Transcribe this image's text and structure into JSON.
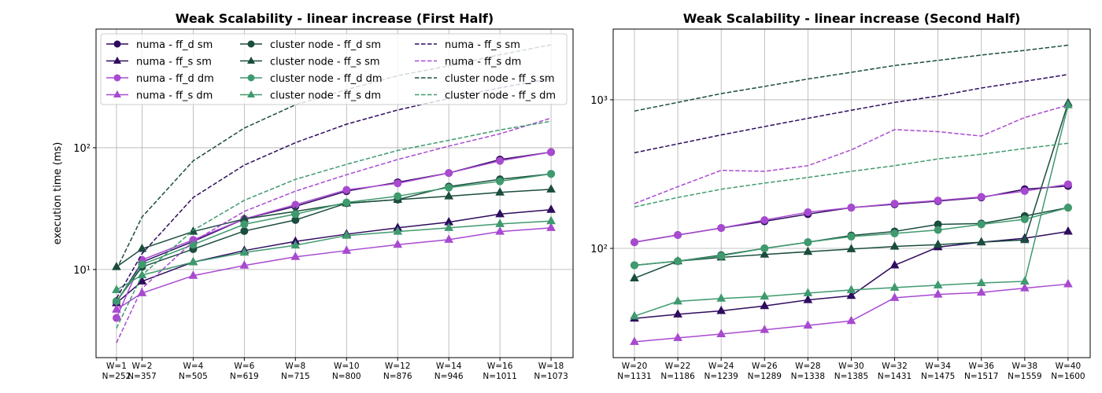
{
  "chart_data": [
    {
      "type": "line",
      "title": "Weak Scalability - linear increase (First Half)",
      "y_label": "execution time (ms)",
      "x": [
        1,
        2,
        4,
        6,
        8,
        10,
        12,
        14,
        16,
        18
      ],
      "xlim": [
        0.2,
        18.86
      ],
      "xticks": [
        {
          "value": 1,
          "label": "W=1\nN=252"
        },
        {
          "value": 2,
          "label": "W=2\nN=357"
        },
        {
          "value": 4,
          "label": "W=4\nN=505"
        },
        {
          "value": 6,
          "label": "W=6\nN=619"
        },
        {
          "value": 8,
          "label": "W=8\nN=715"
        },
        {
          "value": 10,
          "label": "W=10\nN=800"
        },
        {
          "value": 12,
          "label": "W=12\nN=876"
        },
        {
          "value": 14,
          "label": "W=14\nN=946"
        },
        {
          "value": 16,
          "label": "W=16\nN=1011"
        },
        {
          "value": 18,
          "label": "W=18\nN=1073"
        }
      ],
      "ylim": [
        1.89,
        942
      ],
      "log_scale": true,
      "grid": true,
      "yticks": [
        {
          "value": 10,
          "label": "10¹"
        },
        {
          "value": 100,
          "label": "10²"
        }
      ],
      "legend": "upper left",
      "legend_columns": 3,
      "series": [
        {
          "name": "numa - ff_d sm",
          "color": "#2e0c5e",
          "marker": "o",
          "linestyle": "solid",
          "values": [
            5.4,
            11.5,
            17,
            26,
            33,
            44,
            52,
            62,
            80,
            92
          ]
        },
        {
          "name": "numa - ff_s sm",
          "color": "#2e0c5e",
          "marker": "^",
          "linestyle": "solid",
          "values": [
            5.3,
            8,
            11.5,
            14.3,
            17,
            19.5,
            22,
            24.5,
            28.5,
            31
          ]
        },
        {
          "name": "numa - ff_d dm",
          "color": "#a84ad0",
          "marker": "o",
          "linestyle": "solid",
          "values": [
            4.0,
            12,
            17.5,
            26,
            34,
            45,
            51,
            62,
            78,
            92
          ]
        },
        {
          "name": "numa - ff_s dm",
          "color": "#a84ad0",
          "marker": "^",
          "linestyle": "solid",
          "values": [
            4.7,
            6.4,
            8.9,
            10.8,
            12.7,
            14.3,
            16,
            17.6,
            20.5,
            22
          ]
        },
        {
          "name": "cluster node - ff_d sm",
          "color": "#1b4d3e",
          "marker": "o",
          "linestyle": "solid",
          "values": [
            5.5,
            10.5,
            14.7,
            20.7,
            25.5,
            35,
            37.5,
            48,
            55,
            61
          ]
        },
        {
          "name": "cluster node - ff_s sm",
          "color": "#1b4d3e",
          "marker": "^",
          "linestyle": "solid",
          "values": [
            10.5,
            14.8,
            20.5,
            26,
            30,
            35,
            37.5,
            40,
            43,
            45.5
          ]
        },
        {
          "name": "cluster node - ff_d dm",
          "color": "#3f9a6e",
          "marker": "o",
          "linestyle": "solid",
          "values": [
            5.5,
            11,
            16,
            23.5,
            28.5,
            35.5,
            40,
            47,
            53,
            61
          ]
        },
        {
          "name": "cluster node - ff_s dm",
          "color": "#3f9a6e",
          "marker": "^",
          "linestyle": "solid",
          "values": [
            6.8,
            9,
            11.5,
            13.8,
            15.8,
            19,
            20.5,
            22,
            23.7,
            25
          ]
        },
        {
          "name": "numa - ff_s sm",
          "color": "#2e0c5e",
          "marker": null,
          "linestyle": "dashed",
          "values": [
            5.8,
            13.5,
            39,
            72,
            110,
            156,
            204,
            254,
            310,
            370
          ]
        },
        {
          "name": "numa - ff_s dm",
          "color": "#a84ad0",
          "marker": null,
          "linestyle": "dashed",
          "values": [
            2.5,
            7,
            17,
            30,
            44,
            60,
            80,
            103,
            130,
            175
          ]
        },
        {
          "name": "cluster node - ff_s sm",
          "color": "#1b4d3e",
          "marker": null,
          "linestyle": "dashed",
          "values": [
            10,
            27,
            78,
            145,
            225,
            300,
            390,
            470,
            580,
            700
          ]
        },
        {
          "name": "cluster node - ff_s dm",
          "color": "#3f9a6e",
          "marker": null,
          "linestyle": "dashed",
          "values": [
            3.3,
            9,
            21,
            37,
            55,
            73,
            95,
            115,
            140,
            165
          ]
        }
      ]
    },
    {
      "type": "line",
      "title": "Weak Scalability - linear increase (Second Half)",
      "x": [
        20,
        22,
        24,
        26,
        28,
        30,
        32,
        34,
        36,
        38,
        40
      ],
      "xlim": [
        19.02,
        41.02
      ],
      "xticks": [
        {
          "value": 20,
          "label": "W=20\nN=1131"
        },
        {
          "value": 22,
          "label": "W=22\nN=1186"
        },
        {
          "value": 24,
          "label": "W=24\nN=1239"
        },
        {
          "value": 26,
          "label": "W=26\nN=1289"
        },
        {
          "value": 28,
          "label": "W=28\nN=1338"
        },
        {
          "value": 30,
          "label": "W=30\nN=1385"
        },
        {
          "value": 32,
          "label": "W=32\nN=1431"
        },
        {
          "value": 34,
          "label": "W=34\nN=1475"
        },
        {
          "value": 36,
          "label": "W=36\nN=1517"
        },
        {
          "value": 38,
          "label": "W=38\nN=1559"
        },
        {
          "value": 40,
          "label": "W=40\nN=1600"
        }
      ],
      "ylim": [
        18.4,
        2990
      ],
      "log_scale": true,
      "grid": true,
      "yticks": [
        {
          "value": 100,
          "label": "10²"
        },
        {
          "value": 1000,
          "label": "10³"
        }
      ],
      "series": [
        {
          "color": "#2e0c5e",
          "marker": "o",
          "linestyle": "solid",
          "values": [
            110,
            123,
            137,
            152,
            170,
            188,
            198,
            208,
            220,
            250,
            263
          ]
        },
        {
          "color": "#2e0c5e",
          "marker": "^",
          "linestyle": "solid",
          "values": [
            33.8,
            36,
            38,
            41,
            45,
            48,
            77,
            102,
            110,
            117,
            130
          ]
        },
        {
          "color": "#a84ad0",
          "marker": "o",
          "linestyle": "solid",
          "values": [
            110,
            123,
            137,
            155,
            175,
            188,
            200,
            210,
            222,
            243,
            270
          ]
        },
        {
          "color": "#a84ad0",
          "marker": "^",
          "linestyle": "solid",
          "values": [
            23.5,
            25,
            26.5,
            28.3,
            30.3,
            32.5,
            46.5,
            49,
            50.5,
            54,
            57.5
          ]
        },
        {
          "color": "#1b4d3e",
          "marker": "o",
          "linestyle": "solid",
          "values": [
            77,
            82,
            90,
            100,
            110,
            122,
            130,
            145,
            147,
            165,
            188
          ]
        },
        {
          "color": "#1b4d3e",
          "marker": "^",
          "linestyle": "solid",
          "values": [
            63,
            82,
            87,
            91,
            95,
            99,
            103,
            106,
            110,
            114,
            950
          ]
        },
        {
          "color": "#3f9a6e",
          "marker": "o",
          "linestyle": "solid",
          "values": [
            77,
            82,
            89,
            100,
            110,
            120,
            126,
            133,
            145,
            157,
            188
          ]
        },
        {
          "color": "#3f9a6e",
          "marker": "^",
          "linestyle": "solid",
          "values": [
            35,
            44,
            46,
            47.5,
            50,
            52.5,
            54.5,
            56.5,
            58.5,
            60,
            920
          ]
        },
        {
          "color": "#2e0c5e",
          "marker": null,
          "linestyle": "dashed",
          "values": [
            440,
            505,
            580,
            660,
            750,
            850,
            960,
            1060,
            1200,
            1330,
            1480
          ]
        },
        {
          "color": "#a84ad0",
          "marker": null,
          "linestyle": "dashed",
          "values": [
            200,
            260,
            335,
            330,
            360,
            460,
            630,
            610,
            570,
            760,
            920
          ]
        },
        {
          "color": "#1b4d3e",
          "marker": null,
          "linestyle": "dashed",
          "values": [
            840,
            960,
            1100,
            1230,
            1380,
            1530,
            1700,
            1840,
            2000,
            2150,
            2330
          ]
        },
        {
          "color": "#3f9a6e",
          "marker": null,
          "linestyle": "dashed",
          "values": [
            190,
            220,
            250,
            275,
            300,
            330,
            360,
            400,
            430,
            470,
            510
          ]
        }
      ]
    }
  ]
}
